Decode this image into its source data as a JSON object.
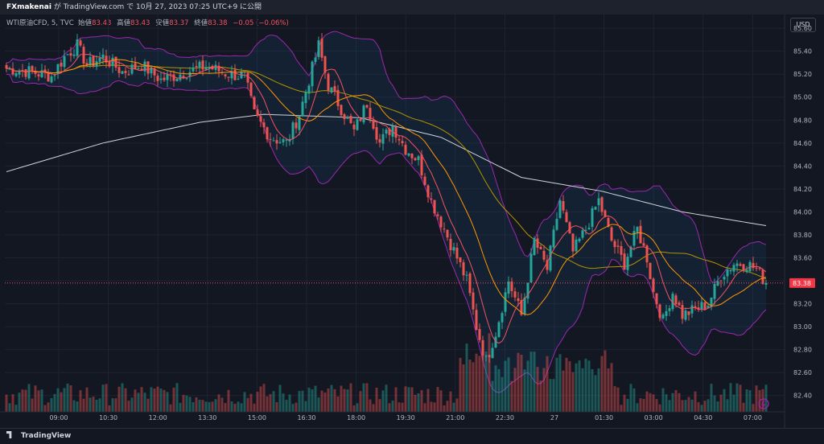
{
  "header": {
    "author": "FXmakenai",
    "text": " が TradingView.com で 10月 27, 2023 07:25 UTC+9 に公開"
  },
  "legend": {
    "symbol": "WTI原油CFD, 5, TVC",
    "open_label": "始値",
    "open": "83.43",
    "high_label": "高値",
    "high": "83.43",
    "low_label": "安値",
    "low": "83.37",
    "close_label": "終値",
    "close": "83.38",
    "change": "−0.05 (−0.06%)"
  },
  "currency_button": "USD",
  "footer": {
    "brand": "TradingView"
  },
  "colors": {
    "up": "#26a69a",
    "down": "#ef5350",
    "ma_fast": "#f7525f",
    "ma_mid": "#ff9800",
    "ma_slow": "#b29500",
    "ma_long": "#d1d4dc",
    "bollinger": "#9c27b0"
  },
  "chart_data": {
    "type": "candlestick",
    "y_ticks": [
      "85.60",
      "85.40",
      "85.20",
      "85.00",
      "84.80",
      "84.60",
      "84.40",
      "84.20",
      "84.00",
      "83.80",
      "83.60",
      "83.40",
      "83.20",
      "83.00",
      "82.80",
      "82.60",
      "82.40"
    ],
    "x_ticks": [
      "09:00",
      "10:30",
      "12:00",
      "13:30",
      "15:00",
      "16:30",
      "18:00",
      "19:30",
      "21:00",
      "22:30",
      "27",
      "01:30",
      "03:00",
      "04:30",
      "07:00"
    ],
    "ylim": [
      82.3,
      85.72
    ],
    "last_price": "83.38",
    "price_path": [
      {
        "t": 0,
        "p": 85.25
      },
      {
        "t": 8,
        "p": 85.22
      },
      {
        "t": 14,
        "p": 85.18
      },
      {
        "t": 18,
        "p": 85.35
      },
      {
        "t": 22,
        "p": 85.45
      },
      {
        "t": 25,
        "p": 85.28
      },
      {
        "t": 30,
        "p": 85.35
      },
      {
        "t": 36,
        "p": 85.22
      },
      {
        "t": 42,
        "p": 85.28
      },
      {
        "t": 48,
        "p": 85.15
      },
      {
        "t": 56,
        "p": 85.22
      },
      {
        "t": 62,
        "p": 85.27
      },
      {
        "t": 69,
        "p": 85.2
      },
      {
        "t": 74,
        "p": 85.18
      },
      {
        "t": 77,
        "p": 84.85
      },
      {
        "t": 82,
        "p": 84.65
      },
      {
        "t": 87,
        "p": 84.6
      },
      {
        "t": 91,
        "p": 84.85
      },
      {
        "t": 94,
        "p": 85.15
      },
      {
        "t": 97,
        "p": 85.45
      },
      {
        "t": 100,
        "p": 85.1
      },
      {
        "t": 104,
        "p": 84.9
      },
      {
        "t": 108,
        "p": 84.7
      },
      {
        "t": 112,
        "p": 84.95
      },
      {
        "t": 116,
        "p": 84.6
      },
      {
        "t": 120,
        "p": 84.75
      },
      {
        "t": 124,
        "p": 84.55
      },
      {
        "t": 128,
        "p": 84.45
      },
      {
        "t": 132,
        "p": 84.1
      },
      {
        "t": 136,
        "p": 83.85
      },
      {
        "t": 140,
        "p": 83.6
      },
      {
        "t": 143,
        "p": 83.4
      },
      {
        "t": 146,
        "p": 83.0
      },
      {
        "t": 149,
        "p": 82.7
      },
      {
        "t": 152,
        "p": 82.95
      },
      {
        "t": 156,
        "p": 83.4
      },
      {
        "t": 160,
        "p": 83.1
      },
      {
        "t": 164,
        "p": 83.75
      },
      {
        "t": 168,
        "p": 83.5
      },
      {
        "t": 172,
        "p": 84.1
      },
      {
        "t": 176,
        "p": 83.65
      },
      {
        "t": 180,
        "p": 83.85
      },
      {
        "t": 184,
        "p": 84.1
      },
      {
        "t": 188,
        "p": 83.75
      },
      {
        "t": 192,
        "p": 83.55
      },
      {
        "t": 196,
        "p": 83.85
      },
      {
        "t": 199,
        "p": 83.6
      },
      {
        "t": 201,
        "p": 83.3
      },
      {
        "t": 204,
        "p": 83.05
      },
      {
        "t": 207,
        "p": 83.3
      },
      {
        "t": 210,
        "p": 83.1
      },
      {
        "t": 214,
        "p": 83.15
      },
      {
        "t": 218,
        "p": 83.2
      },
      {
        "t": 222,
        "p": 83.45
      },
      {
        "t": 226,
        "p": 83.55
      },
      {
        "t": 230,
        "p": 83.55
      },
      {
        "t": 233,
        "p": 83.5
      },
      {
        "t": 236,
        "p": 83.38
      }
    ],
    "ma_long_path": [
      {
        "t": 0,
        "p": 84.35
      },
      {
        "t": 30,
        "p": 84.6
      },
      {
        "t": 60,
        "p": 84.78
      },
      {
        "t": 80,
        "p": 84.85
      },
      {
        "t": 110,
        "p": 84.82
      },
      {
        "t": 135,
        "p": 84.65
      },
      {
        "t": 160,
        "p": 84.3
      },
      {
        "t": 185,
        "p": 84.18
      },
      {
        "t": 210,
        "p": 84.0
      },
      {
        "t": 236,
        "p": 83.88
      }
    ]
  }
}
